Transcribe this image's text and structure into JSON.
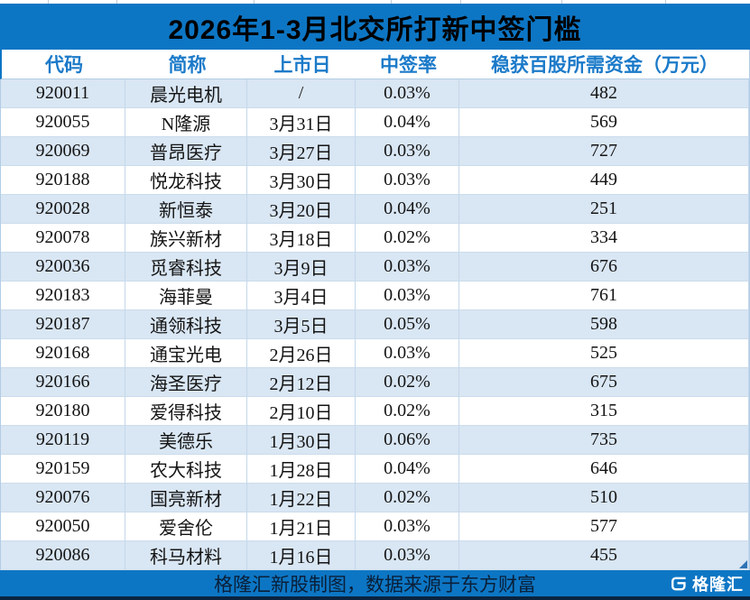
{
  "chart_data": {
    "type": "table",
    "title": "2026年1-3月北交所打新中签门槛",
    "columns": [
      "代码",
      "简称",
      "上市日",
      "中签率",
      "稳获百股所需资金（万元）"
    ],
    "rows": [
      [
        "920011",
        "晨光电机",
        "/",
        "0.03%",
        "482"
      ],
      [
        "920055",
        "N隆源",
        "3月31日",
        "0.04%",
        "569"
      ],
      [
        "920069",
        "普昂医疗",
        "3月27日",
        "0.03%",
        "727"
      ],
      [
        "920188",
        "悦龙科技",
        "3月30日",
        "0.03%",
        "449"
      ],
      [
        "920028",
        "新恒泰",
        "3月20日",
        "0.04%",
        "251"
      ],
      [
        "920078",
        "族兴新材",
        "3月18日",
        "0.02%",
        "334"
      ],
      [
        "920036",
        "觅睿科技",
        "3月9日",
        "0.03%",
        "676"
      ],
      [
        "920183",
        "海菲曼",
        "3月4日",
        "0.03%",
        "761"
      ],
      [
        "920187",
        "通领科技",
        "3月5日",
        "0.05%",
        "598"
      ],
      [
        "920168",
        "通宝光电",
        "2月26日",
        "0.03%",
        "525"
      ],
      [
        "920166",
        "海圣医疗",
        "2月12日",
        "0.02%",
        "675"
      ],
      [
        "920180",
        "爱得科技",
        "2月10日",
        "0.02%",
        "315"
      ],
      [
        "920119",
        "美德乐",
        "1月30日",
        "0.06%",
        "735"
      ],
      [
        "920159",
        "农大科技",
        "1月28日",
        "0.04%",
        "646"
      ],
      [
        "920076",
        "国亮新材",
        "1月22日",
        "0.02%",
        "510"
      ],
      [
        "920050",
        "爱舍伦",
        "1月21日",
        "0.03%",
        "577"
      ],
      [
        "920086",
        "科马材料",
        "1月16日",
        "0.03%",
        "455"
      ]
    ],
    "layout": {
      "alternating_rows": true,
      "all_cells_centered": true
    }
  },
  "footer": {
    "note": "格隆汇新股制图，数据来源于东方财富",
    "brand": "格隆汇",
    "brand_icon": "gelonghui-g-icon"
  },
  "colors": {
    "primary_blue": "#0d76c4",
    "row_alt_blue": "#d9e6f3",
    "header_text_blue": "#1b7ac9",
    "cell_border": "#c3d7ea",
    "footer_bottom_border": "#0a2440",
    "title_text": "#000000",
    "footer_text": "#0a1f38",
    "brand_text": "#ffffff"
  }
}
